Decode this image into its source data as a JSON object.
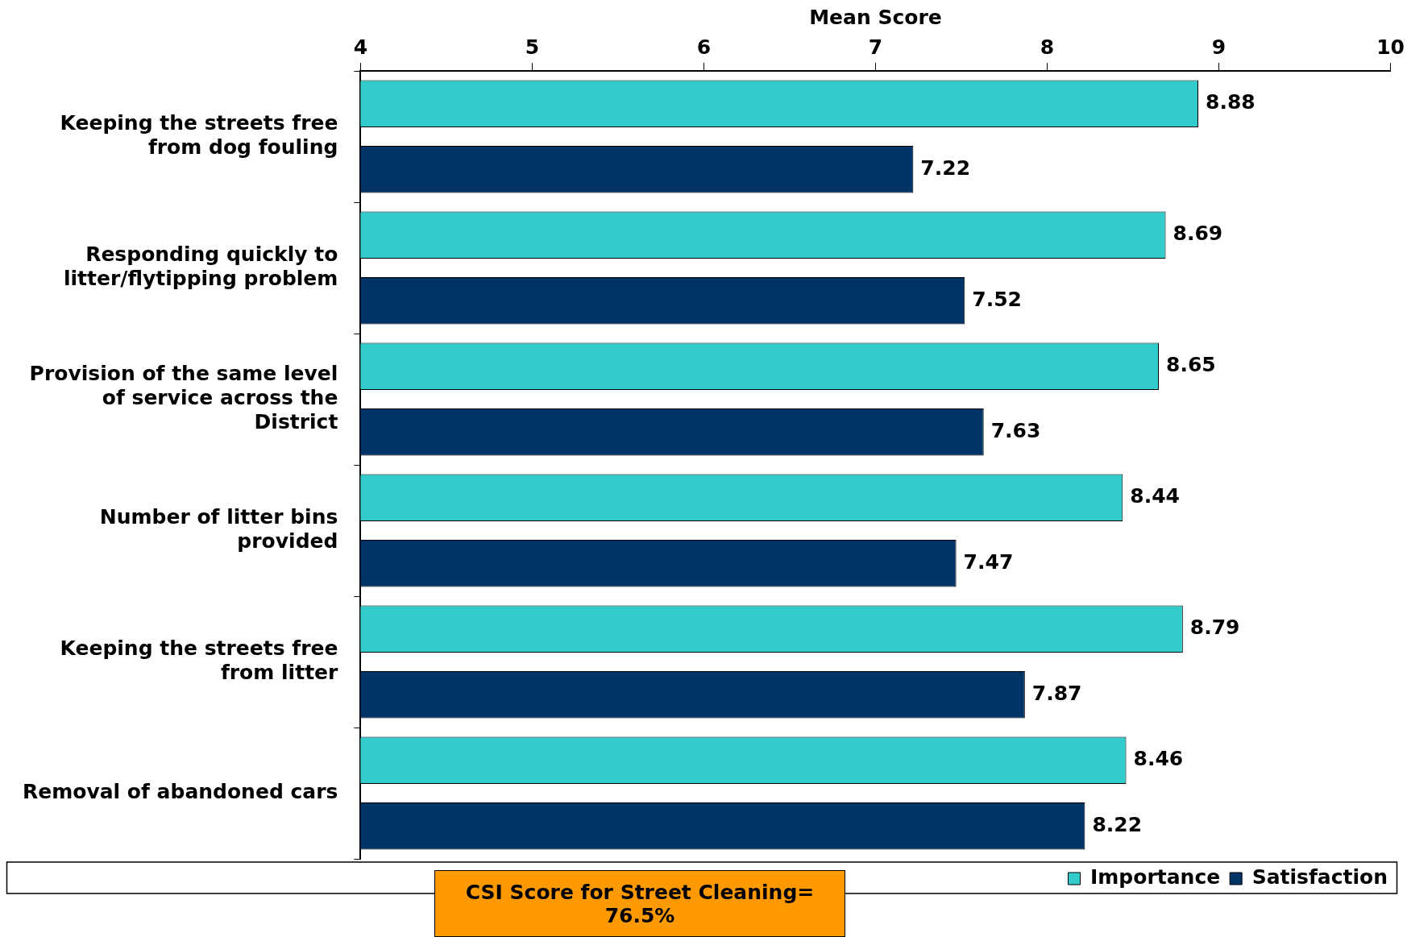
{
  "chart_data": {
    "type": "bar",
    "orientation": "horizontal",
    "xlabel": "Mean Score",
    "categories": [
      "Keeping the streets free from dog fouling",
      "Responding quickly to litter/flytipping problem",
      "Provision of the same level of service across the District",
      "Number of litter bins provided",
      "Keeping the streets free from litter",
      "Removal of abandoned cars"
    ],
    "series": [
      {
        "name": "Importance",
        "color": "#33cccc",
        "values": [
          8.88,
          8.69,
          8.65,
          8.44,
          8.79,
          8.46
        ]
      },
      {
        "name": "Satisfaction",
        "color": "#003366",
        "values": [
          7.22,
          7.52,
          7.63,
          7.47,
          7.87,
          8.22
        ]
      }
    ],
    "xlim": [
      4,
      10
    ],
    "xticks": [
      4,
      5,
      6,
      7,
      8,
      9,
      10
    ],
    "grid": false,
    "legend": "bottom right",
    "data_labels": true,
    "annotations": [
      "CSI Score for Street Cleaning= 76.5%"
    ]
  }
}
